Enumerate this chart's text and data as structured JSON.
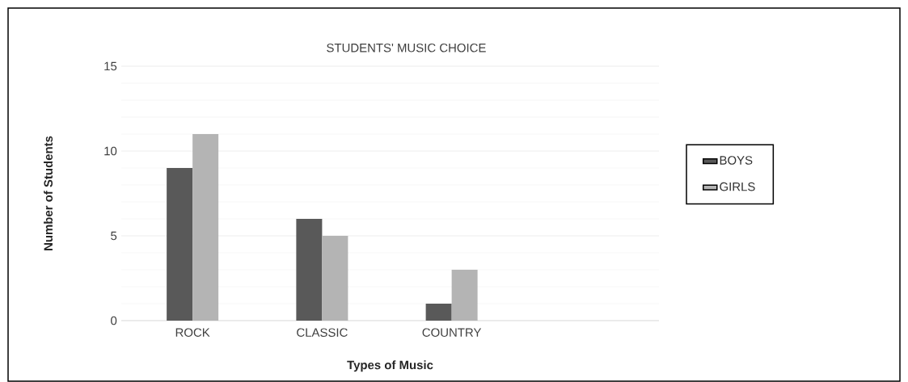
{
  "chart_data": {
    "type": "bar",
    "title": "STUDENTS' MUSIC CHOICE",
    "xlabel": "Types of Music",
    "ylabel": "Number of Students",
    "categories": [
      "ROCK",
      "CLASSIC",
      "COUNTRY"
    ],
    "series": [
      {
        "name": "BOYS",
        "color": "#595959",
        "values": [
          9,
          6,
          1
        ]
      },
      {
        "name": "GIRLS",
        "color": "#b4b4b4",
        "values": [
          11,
          5,
          3
        ]
      }
    ],
    "ylim": [
      0,
      15
    ],
    "yticks": [
      0,
      5,
      10,
      15
    ],
    "grid": "y",
    "legend": "right"
  }
}
